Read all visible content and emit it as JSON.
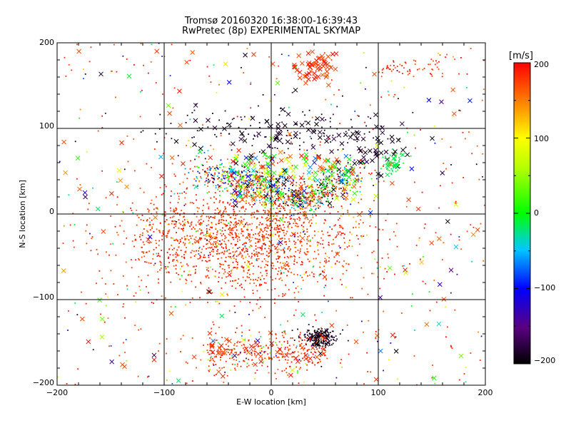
{
  "chart_data": {
    "type": "scatter",
    "title": "Tromsø 20160320 16:38:00-16:39:43",
    "subtitle": "RwPretec (8p) EXPERIMENTAL SKYMAP",
    "xlabel": "E-W location [km]",
    "ylabel": "N-S location [km]",
    "xlim": [
      -200,
      200
    ],
    "ylim": [
      -200,
      200
    ],
    "xticks": [
      "−200",
      "−100",
      "0",
      "100",
      "200"
    ],
    "yticks": [
      "−200",
      "−100",
      "0",
      "100",
      "200"
    ],
    "grid": true,
    "markers": [
      "dot",
      "cross"
    ],
    "colorbar": {
      "unit_label": "[m/s]",
      "range": [
        -200,
        200
      ],
      "ticks": [
        "200",
        "100",
        "0",
        "−100",
        "−200"
      ],
      "colormap": "black-purple-blue-cyan-green-yellow-orange-red"
    },
    "clusters": [
      {
        "x": -10,
        "y": -30,
        "velocity": 200,
        "count": "dense",
        "region": "main red cloud"
      },
      {
        "x": 10,
        "y": 40,
        "velocity": 20,
        "count": "dense",
        "region": "northern arc (mixed colors)"
      },
      {
        "x": 60,
        "y": 100,
        "velocity": -200,
        "count": "medium",
        "region": "black crosses north"
      },
      {
        "x": 40,
        "y": 175,
        "velocity": 200,
        "count": "medium",
        "region": "red crosses far north"
      },
      {
        "x": 45,
        "y": -145,
        "velocity": -200,
        "count": "medium",
        "region": "black cluster south"
      },
      {
        "x": -20,
        "y": -165,
        "velocity": 200,
        "count": "medium",
        "region": "southern red band"
      },
      {
        "x": 115,
        "y": 60,
        "velocity": -20,
        "count": "small",
        "region": "cyan cluster east"
      }
    ]
  }
}
